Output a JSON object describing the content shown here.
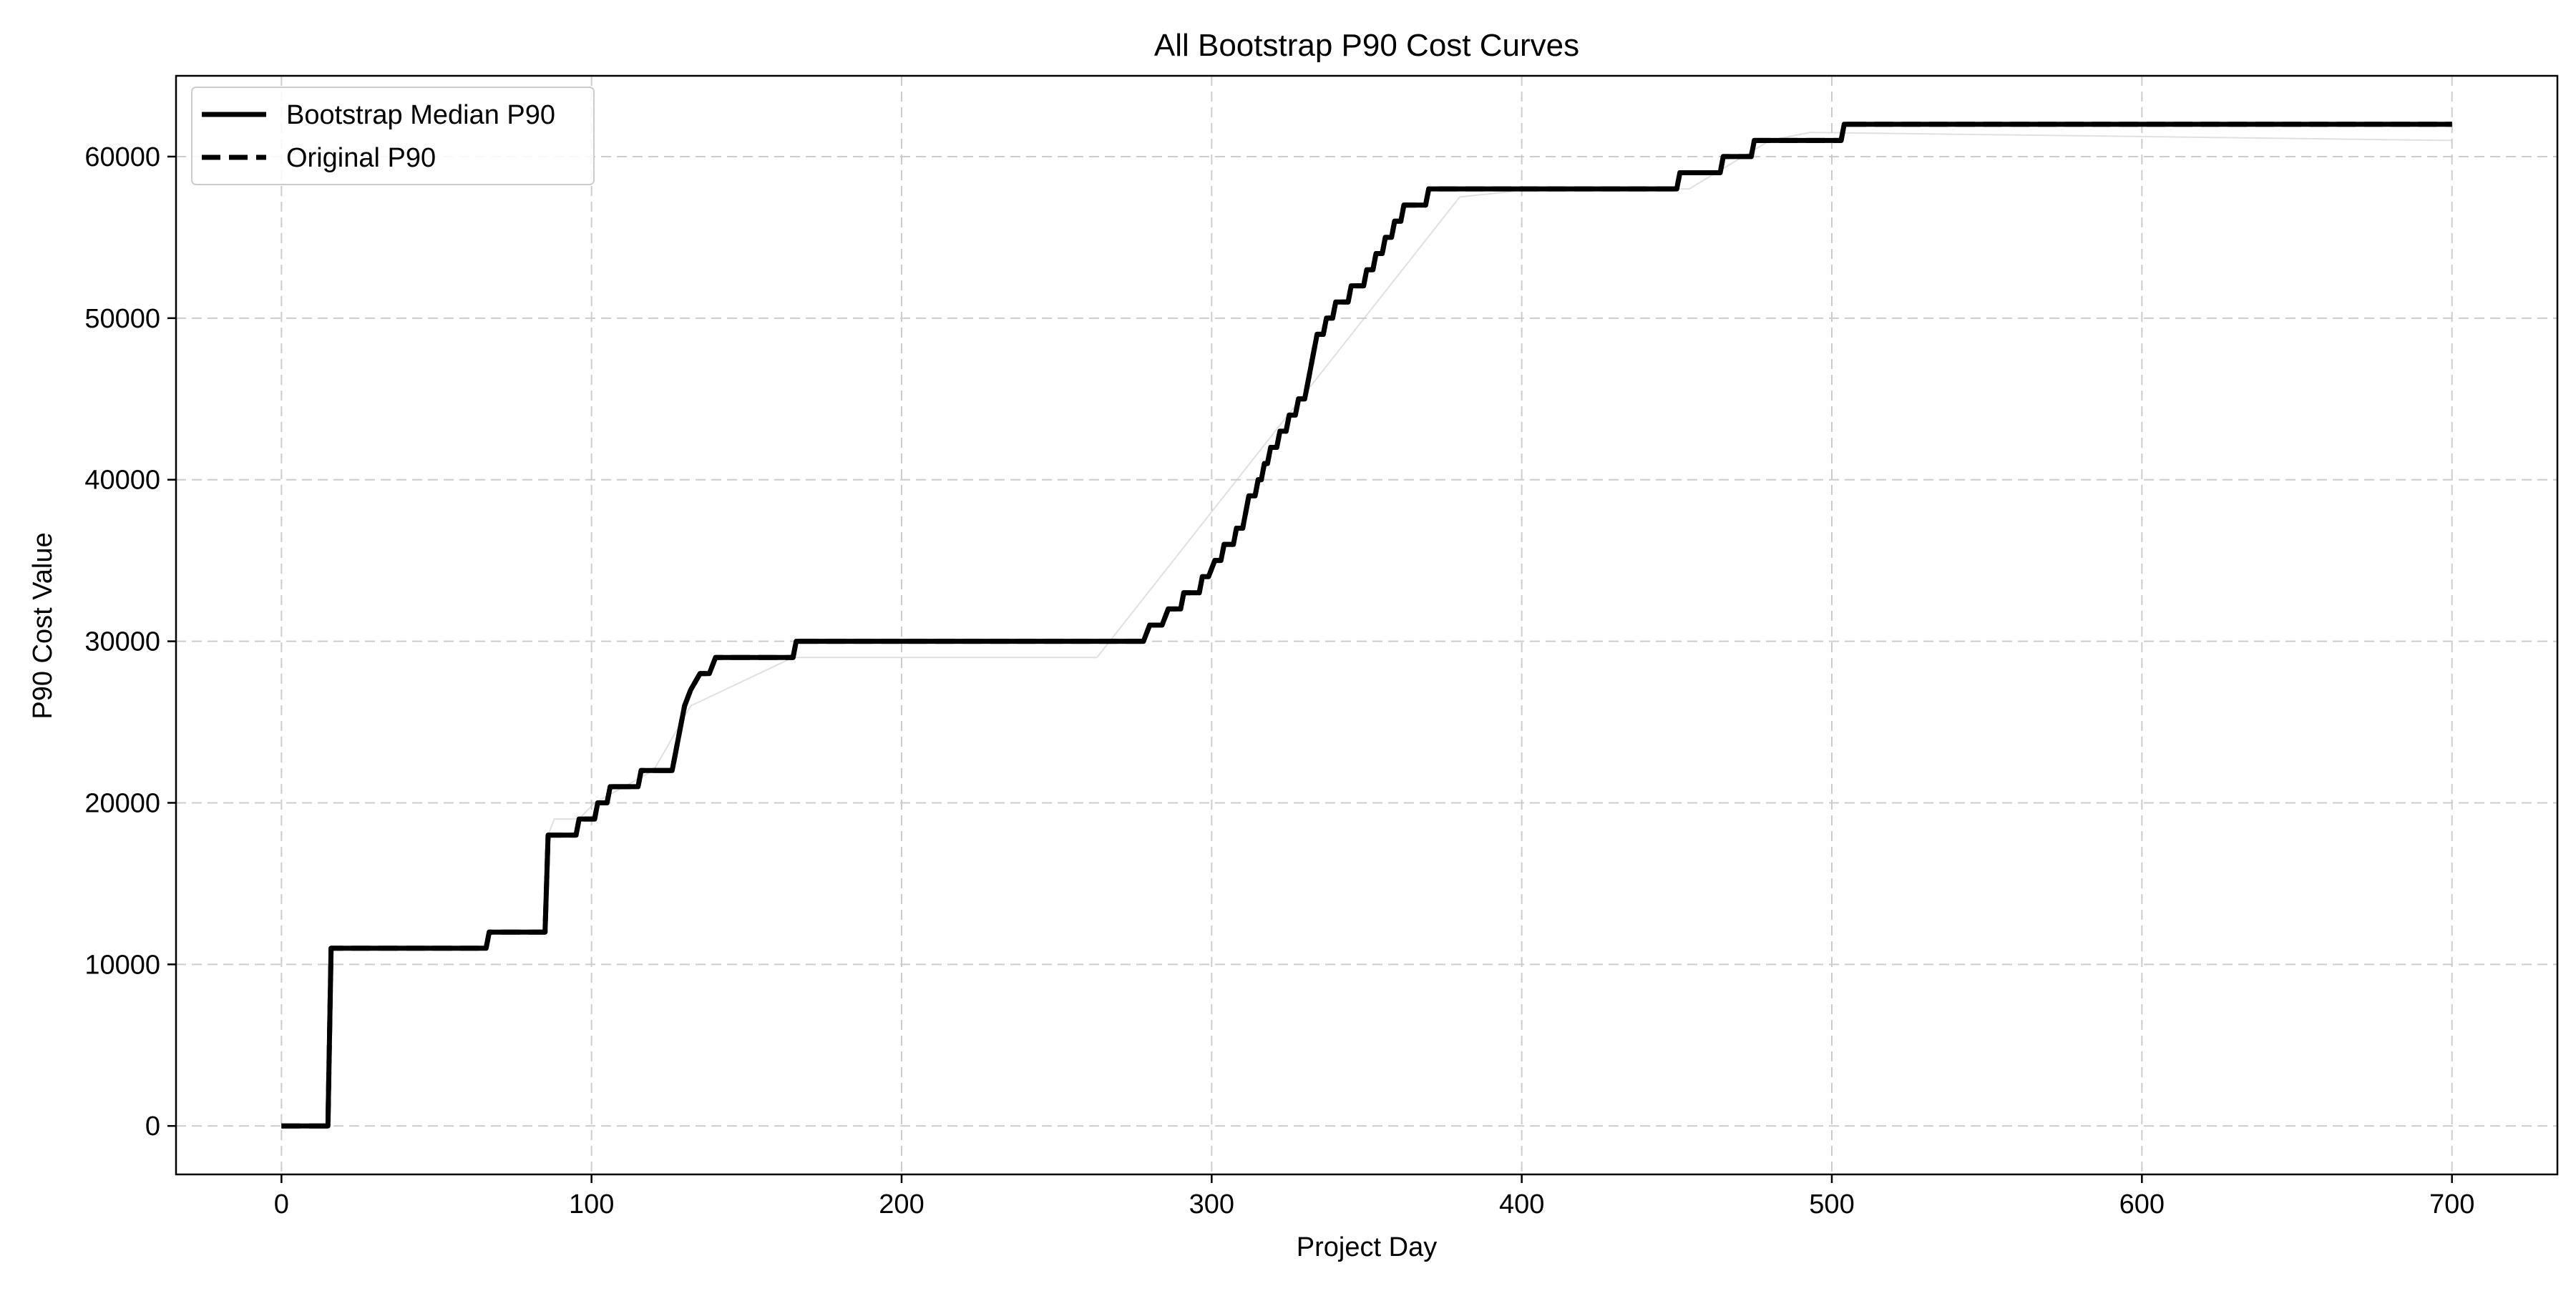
{
  "chart_data": {
    "type": "line",
    "title": "All Bootstrap P90 Cost Curves",
    "xlabel": "Project Day",
    "ylabel": "P90 Cost Value",
    "xlim": [
      -34,
      734
    ],
    "ylim": [
      -3000,
      65000
    ],
    "xticks": [
      0,
      100,
      200,
      300,
      400,
      500,
      600,
      700
    ],
    "yticks": [
      0,
      10000,
      20000,
      30000,
      40000,
      50000,
      60000
    ],
    "grid": true,
    "legend": {
      "placement": "top-left",
      "entries": [
        {
          "label": "Bootstrap Median P90",
          "style": "solid"
        },
        {
          "label": "Original P90",
          "style": "dashed"
        }
      ]
    },
    "series": [
      {
        "name": "Bootstrap Median P90",
        "style": "solid",
        "color": "#000000",
        "points": [
          [
            0,
            0
          ],
          [
            15,
            0
          ],
          [
            16,
            11000
          ],
          [
            66,
            11000
          ],
          [
            67,
            12000
          ],
          [
            85,
            12000
          ],
          [
            86,
            18000
          ],
          [
            95,
            18000
          ],
          [
            96,
            19000
          ],
          [
            101,
            19000
          ],
          [
            102,
            20000
          ],
          [
            105,
            20000
          ],
          [
            106,
            21000
          ],
          [
            115,
            21000
          ],
          [
            116,
            22000
          ],
          [
            126,
            22000
          ],
          [
            127,
            23000
          ],
          [
            128,
            24000
          ],
          [
            129,
            25000
          ],
          [
            130,
            26000
          ],
          [
            132,
            27000
          ],
          [
            135,
            28000
          ],
          [
            138,
            28000
          ],
          [
            140,
            29000
          ],
          [
            165,
            29000
          ],
          [
            166,
            30000
          ],
          [
            278,
            30000
          ],
          [
            280,
            31000
          ],
          [
            284,
            31000
          ],
          [
            286,
            32000
          ],
          [
            290,
            32000
          ],
          [
            291,
            33000
          ],
          [
            296,
            33000
          ],
          [
            297,
            34000
          ],
          [
            299,
            34000
          ],
          [
            301,
            35000
          ],
          [
            303,
            35000
          ],
          [
            304,
            36000
          ],
          [
            307,
            36000
          ],
          [
            308,
            37000
          ],
          [
            310,
            37000
          ],
          [
            311,
            38000
          ],
          [
            312,
            39000
          ],
          [
            314,
            39000
          ],
          [
            315,
            40000
          ],
          [
            316,
            40000
          ],
          [
            317,
            41000
          ],
          [
            318,
            41000
          ],
          [
            319,
            42000
          ],
          [
            321,
            42000
          ],
          [
            322,
            43000
          ],
          [
            324,
            43000
          ],
          [
            325,
            44000
          ],
          [
            327,
            44000
          ],
          [
            328,
            45000
          ],
          [
            330,
            45000
          ],
          [
            331,
            46000
          ],
          [
            332,
            47000
          ],
          [
            333,
            48000
          ],
          [
            334,
            49000
          ],
          [
            336,
            49000
          ],
          [
            337,
            50000
          ],
          [
            339,
            50000
          ],
          [
            340,
            51000
          ],
          [
            344,
            51000
          ],
          [
            345,
            52000
          ],
          [
            349,
            52000
          ],
          [
            350,
            53000
          ],
          [
            352,
            53000
          ],
          [
            353,
            54000
          ],
          [
            355,
            54000
          ],
          [
            356,
            55000
          ],
          [
            358,
            55000
          ],
          [
            359,
            56000
          ],
          [
            361,
            56000
          ],
          [
            362,
            57000
          ],
          [
            369,
            57000
          ],
          [
            370,
            58000
          ],
          [
            450,
            58000
          ],
          [
            451,
            59000
          ],
          [
            464,
            59000
          ],
          [
            465,
            60000
          ],
          [
            474,
            60000
          ],
          [
            475,
            61000
          ],
          [
            503,
            61000
          ],
          [
            504,
            62000
          ],
          [
            700,
            62000
          ]
        ]
      },
      {
        "name": "Original P90",
        "style": "dashed",
        "color": "#000000",
        "points": [
          [
            0,
            0
          ],
          [
            15,
            0
          ],
          [
            16,
            11000
          ],
          [
            66,
            11000
          ],
          [
            67,
            12000
          ],
          [
            85,
            12000
          ],
          [
            86,
            18000
          ],
          [
            95,
            18000
          ],
          [
            96,
            19000
          ],
          [
            101,
            19000
          ],
          [
            102,
            20000
          ],
          [
            105,
            20000
          ],
          [
            106,
            21000
          ],
          [
            115,
            21000
          ],
          [
            116,
            22000
          ],
          [
            126,
            22000
          ],
          [
            127,
            23000
          ],
          [
            128,
            24000
          ],
          [
            129,
            25000
          ],
          [
            130,
            26000
          ],
          [
            132,
            27000
          ],
          [
            135,
            28000
          ],
          [
            138,
            28000
          ],
          [
            140,
            29000
          ],
          [
            165,
            29000
          ],
          [
            166,
            30000
          ],
          [
            278,
            30000
          ],
          [
            280,
            31000
          ],
          [
            284,
            31000
          ],
          [
            286,
            32000
          ],
          [
            290,
            32000
          ],
          [
            291,
            33000
          ],
          [
            296,
            33000
          ],
          [
            297,
            34000
          ],
          [
            299,
            34000
          ],
          [
            301,
            35000
          ],
          [
            303,
            35000
          ],
          [
            304,
            36000
          ],
          [
            307,
            36000
          ],
          [
            308,
            37000
          ],
          [
            310,
            37000
          ],
          [
            311,
            38000
          ],
          [
            312,
            39000
          ],
          [
            314,
            39000
          ],
          [
            315,
            40000
          ],
          [
            316,
            40000
          ],
          [
            317,
            41000
          ],
          [
            318,
            41000
          ],
          [
            319,
            42000
          ],
          [
            321,
            42000
          ],
          [
            322,
            43000
          ],
          [
            324,
            43000
          ],
          [
            325,
            44000
          ],
          [
            327,
            44000
          ],
          [
            328,
            45000
          ],
          [
            330,
            45000
          ],
          [
            331,
            46000
          ],
          [
            332,
            47000
          ],
          [
            333,
            48000
          ],
          [
            334,
            49000
          ],
          [
            336,
            49000
          ],
          [
            337,
            50000
          ],
          [
            339,
            50000
          ],
          [
            340,
            51000
          ],
          [
            344,
            51000
          ],
          [
            345,
            52000
          ],
          [
            349,
            52000
          ],
          [
            350,
            53000
          ],
          [
            352,
            53000
          ],
          [
            353,
            54000
          ],
          [
            355,
            54000
          ],
          [
            356,
            55000
          ],
          [
            358,
            55000
          ],
          [
            359,
            56000
          ],
          [
            361,
            56000
          ],
          [
            362,
            57000
          ],
          [
            369,
            57000
          ],
          [
            370,
            58000
          ],
          [
            450,
            58000
          ],
          [
            451,
            59000
          ],
          [
            464,
            59000
          ],
          [
            465,
            60000
          ],
          [
            474,
            60000
          ],
          [
            475,
            61000
          ],
          [
            503,
            61000
          ],
          [
            504,
            62000
          ],
          [
            700,
            62000
          ]
        ]
      },
      {
        "name": "",
        "style": "faint",
        "color": "#cccccc",
        "points": [
          [
            86,
            18000
          ],
          [
            88,
            19000
          ],
          [
            96,
            19000
          ],
          [
            101,
            20000
          ],
          [
            120,
            22000
          ],
          [
            132,
            26000
          ],
          [
            165,
            29000
          ],
          [
            263,
            29000
          ],
          [
            380,
            57500
          ],
          [
            405,
            58000
          ],
          [
            440,
            58000
          ],
          [
            454,
            58000
          ],
          [
            480,
            61000
          ],
          [
            493,
            61500
          ],
          [
            700,
            61000
          ]
        ]
      }
    ]
  }
}
